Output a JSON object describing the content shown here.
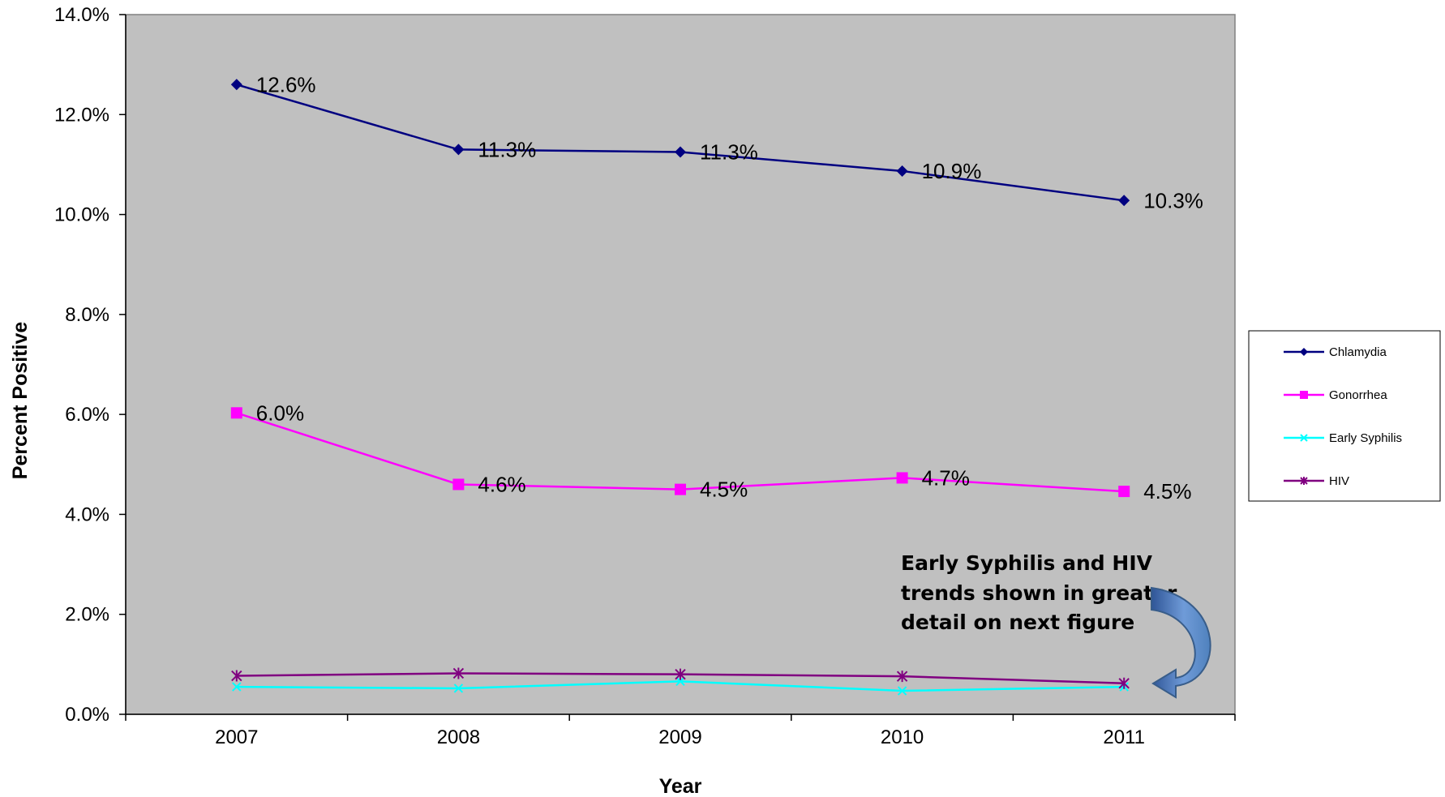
{
  "chart_data": {
    "type": "line",
    "categories": [
      "2007",
      "2008",
      "2009",
      "2010",
      "2011"
    ],
    "series": [
      {
        "name": "Chlamydia",
        "values": [
          12.6,
          11.3,
          11.25,
          10.87,
          10.28
        ],
        "labels": [
          "12.6%",
          "11.3%",
          "11.3%",
          "10.9%",
          "10.3%"
        ],
        "color": "#000080",
        "marker": "diamond"
      },
      {
        "name": "Gonorrhea",
        "values": [
          6.03,
          4.6,
          4.5,
          4.73,
          4.46
        ],
        "labels": [
          "6.0%",
          "4.6%",
          "4.5%",
          "4.7%",
          "4.5%"
        ],
        "color": "#FF00FF",
        "marker": "square"
      },
      {
        "name": "Early Syphilis",
        "values": [
          0.55,
          0.52,
          0.66,
          0.47,
          0.55
        ],
        "labels": [],
        "color": "#00FFFF",
        "marker": "x"
      },
      {
        "name": "HIV",
        "values": [
          0.77,
          0.82,
          0.8,
          0.76,
          0.62
        ],
        "labels": [],
        "color": "#800080",
        "marker": "star"
      }
    ],
    "y_ticks": [
      "0.0%",
      "2.0%",
      "4.0%",
      "6.0%",
      "8.0%",
      "10.0%",
      "12.0%",
      "14.0%"
    ],
    "ylim": [
      0,
      14
    ],
    "xlabel": "Year",
    "ylabel": "Percent Positive",
    "grid": false,
    "plot_background": "#C0C0C0",
    "legend_position": "right",
    "annotation": {
      "lines": [
        "Early Syphilis and HIV",
        "trends shown in greater",
        "detail on next figure"
      ],
      "arrow_color": "#4F81BD"
    }
  }
}
